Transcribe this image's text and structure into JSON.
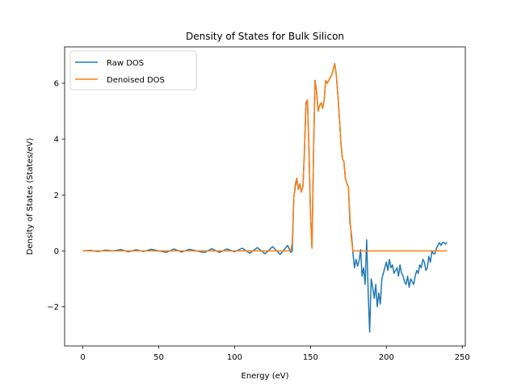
{
  "chart_data": {
    "type": "line",
    "title": "Density of States for Bulk Silicon",
    "xlabel": "Energy (eV)",
    "ylabel": "Density of States (States/eV)",
    "xlim": [
      -12,
      252
    ],
    "ylim": [
      -3.4,
      7.3
    ],
    "xticks": [
      0,
      50,
      100,
      150,
      200,
      250
    ],
    "yticks": [
      -2,
      0,
      2,
      4,
      6
    ],
    "grid": false,
    "legend_position": "upper left",
    "series": [
      {
        "name": "Raw DOS",
        "color": "#1f77b4",
        "points": [
          [
            0,
            0.0
          ],
          [
            5,
            0.02
          ],
          [
            10,
            -0.02
          ],
          [
            15,
            0.03
          ],
          [
            20,
            0.0
          ],
          [
            25,
            0.05
          ],
          [
            30,
            -0.03
          ],
          [
            35,
            0.04
          ],
          [
            40,
            -0.02
          ],
          [
            45,
            0.06
          ],
          [
            50,
            0.0
          ],
          [
            55,
            -0.05
          ],
          [
            60,
            0.07
          ],
          [
            65,
            -0.04
          ],
          [
            70,
            0.06
          ],
          [
            75,
            0.0
          ],
          [
            80,
            -0.06
          ],
          [
            85,
            0.08
          ],
          [
            90,
            -0.05
          ],
          [
            95,
            0.07
          ],
          [
            100,
            -0.03
          ],
          [
            105,
            0.1
          ],
          [
            110,
            -0.08
          ],
          [
            115,
            0.12
          ],
          [
            120,
            -0.1
          ],
          [
            125,
            0.15
          ],
          [
            130,
            -0.12
          ],
          [
            135,
            0.2
          ],
          [
            137,
            -0.05
          ],
          [
            138,
            0.0
          ],
          [
            139,
            1.9
          ],
          [
            140,
            2.3
          ],
          [
            141,
            2.6
          ],
          [
            142,
            2.2
          ],
          [
            143,
            2.4
          ],
          [
            144,
            2.1
          ],
          [
            145,
            2.3
          ],
          [
            146,
            3.5
          ],
          [
            147,
            5.3
          ],
          [
            148,
            5.4
          ],
          [
            149,
            3.6
          ],
          [
            150,
            1.3
          ],
          [
            151,
            0.1
          ],
          [
            152,
            3.5
          ],
          [
            153,
            6.1
          ],
          [
            154,
            5.7
          ],
          [
            155,
            5.0
          ],
          [
            156,
            5.2
          ],
          [
            157,
            5.3
          ],
          [
            158,
            5.1
          ],
          [
            159,
            5.4
          ],
          [
            160,
            6.1
          ],
          [
            161,
            6.0
          ],
          [
            162,
            6.1
          ],
          [
            163,
            6.2
          ],
          [
            164,
            6.3
          ],
          [
            165,
            6.5
          ],
          [
            166,
            6.7
          ],
          [
            167,
            6.3
          ],
          [
            168,
            5.6
          ],
          [
            169,
            4.8
          ],
          [
            170,
            3.9
          ],
          [
            171,
            3.3
          ],
          [
            172,
            3.2
          ],
          [
            173,
            2.6
          ],
          [
            174,
            2.4
          ],
          [
            175,
            2.3
          ],
          [
            176,
            1.0
          ],
          [
            177,
            0.6
          ],
          [
            178,
            -0.1
          ],
          [
            179,
            -0.6
          ],
          [
            180,
            -0.3
          ],
          [
            181,
            -0.55
          ],
          [
            182,
            -0.35
          ],
          [
            183,
            0.05
          ],
          [
            184,
            -0.9
          ],
          [
            185,
            -0.6
          ],
          [
            186,
            -1.2
          ],
          [
            187,
            0.4
          ],
          [
            188,
            -1.5
          ],
          [
            189,
            -2.9
          ],
          [
            190,
            -1.0
          ],
          [
            191,
            -1.3
          ],
          [
            192,
            -1.7
          ],
          [
            193,
            -1.2
          ],
          [
            194,
            -2.0
          ],
          [
            195,
            -1.5
          ],
          [
            196,
            -1.9
          ],
          [
            197,
            -1.0
          ],
          [
            198,
            -0.8
          ],
          [
            199,
            -0.6
          ],
          [
            200,
            -0.4
          ],
          [
            201,
            -0.7
          ],
          [
            202,
            -0.3
          ],
          [
            203,
            -0.6
          ],
          [
            204,
            -0.5
          ],
          [
            205,
            -0.8
          ],
          [
            206,
            -0.7
          ],
          [
            207,
            -0.6
          ],
          [
            208,
            -0.9
          ],
          [
            209,
            -0.5
          ],
          [
            210,
            -0.8
          ],
          [
            211,
            -0.9
          ],
          [
            212,
            -1.1
          ],
          [
            213,
            -1.2
          ],
          [
            214,
            -0.9
          ],
          [
            215,
            -1.3
          ],
          [
            216,
            -1.0
          ],
          [
            217,
            -1.1
          ],
          [
            218,
            -1.2
          ],
          [
            219,
            -0.9
          ],
          [
            220,
            -0.7
          ],
          [
            221,
            -0.8
          ],
          [
            222,
            -0.5
          ],
          [
            223,
            -0.6
          ],
          [
            224,
            -0.3
          ],
          [
            225,
            -0.4
          ],
          [
            226,
            -0.7
          ],
          [
            227,
            -0.6
          ],
          [
            228,
            -0.2
          ],
          [
            229,
            -0.4
          ],
          [
            230,
            0.0
          ],
          [
            231,
            -0.1
          ],
          [
            232,
            -0.1
          ],
          [
            233,
            0.1
          ],
          [
            234,
            0.2
          ],
          [
            235,
            0.3
          ],
          [
            236,
            0.2
          ],
          [
            237,
            0.3
          ],
          [
            238,
            0.3
          ],
          [
            239,
            0.25
          ],
          [
            240,
            0.3
          ]
        ]
      },
      {
        "name": "Denoised DOS",
        "color": "#ff7f0e",
        "points": [
          [
            0,
            0.0
          ],
          [
            25,
            0.0
          ],
          [
            50,
            0.0
          ],
          [
            75,
            0.0
          ],
          [
            100,
            0.0
          ],
          [
            125,
            0.0
          ],
          [
            137,
            0.0
          ],
          [
            138,
            0.3
          ],
          [
            139,
            1.9
          ],
          [
            140,
            2.4
          ],
          [
            141,
            2.6
          ],
          [
            142,
            2.2
          ],
          [
            143,
            2.4
          ],
          [
            144,
            2.1
          ],
          [
            145,
            2.3
          ],
          [
            146,
            3.5
          ],
          [
            147,
            5.2
          ],
          [
            148,
            5.4
          ],
          [
            149,
            3.6
          ],
          [
            150,
            1.3
          ],
          [
            151,
            0.1
          ],
          [
            152,
            3.5
          ],
          [
            153,
            6.1
          ],
          [
            154,
            5.7
          ],
          [
            155,
            5.0
          ],
          [
            156,
            5.2
          ],
          [
            157,
            5.3
          ],
          [
            158,
            5.1
          ],
          [
            159,
            5.4
          ],
          [
            160,
            6.1
          ],
          [
            161,
            6.0
          ],
          [
            162,
            6.1
          ],
          [
            163,
            6.2
          ],
          [
            164,
            6.3
          ],
          [
            165,
            6.5
          ],
          [
            166,
            6.7
          ],
          [
            167,
            6.3
          ],
          [
            168,
            5.6
          ],
          [
            169,
            4.8
          ],
          [
            170,
            3.9
          ],
          [
            171,
            3.3
          ],
          [
            172,
            3.2
          ],
          [
            173,
            2.6
          ],
          [
            174,
            2.4
          ],
          [
            175,
            2.3
          ],
          [
            176,
            1.2
          ],
          [
            177,
            0.4
          ],
          [
            178,
            0.0
          ],
          [
            200,
            0.0
          ],
          [
            220,
            0.0
          ],
          [
            240,
            0.0
          ]
        ]
      }
    ]
  }
}
